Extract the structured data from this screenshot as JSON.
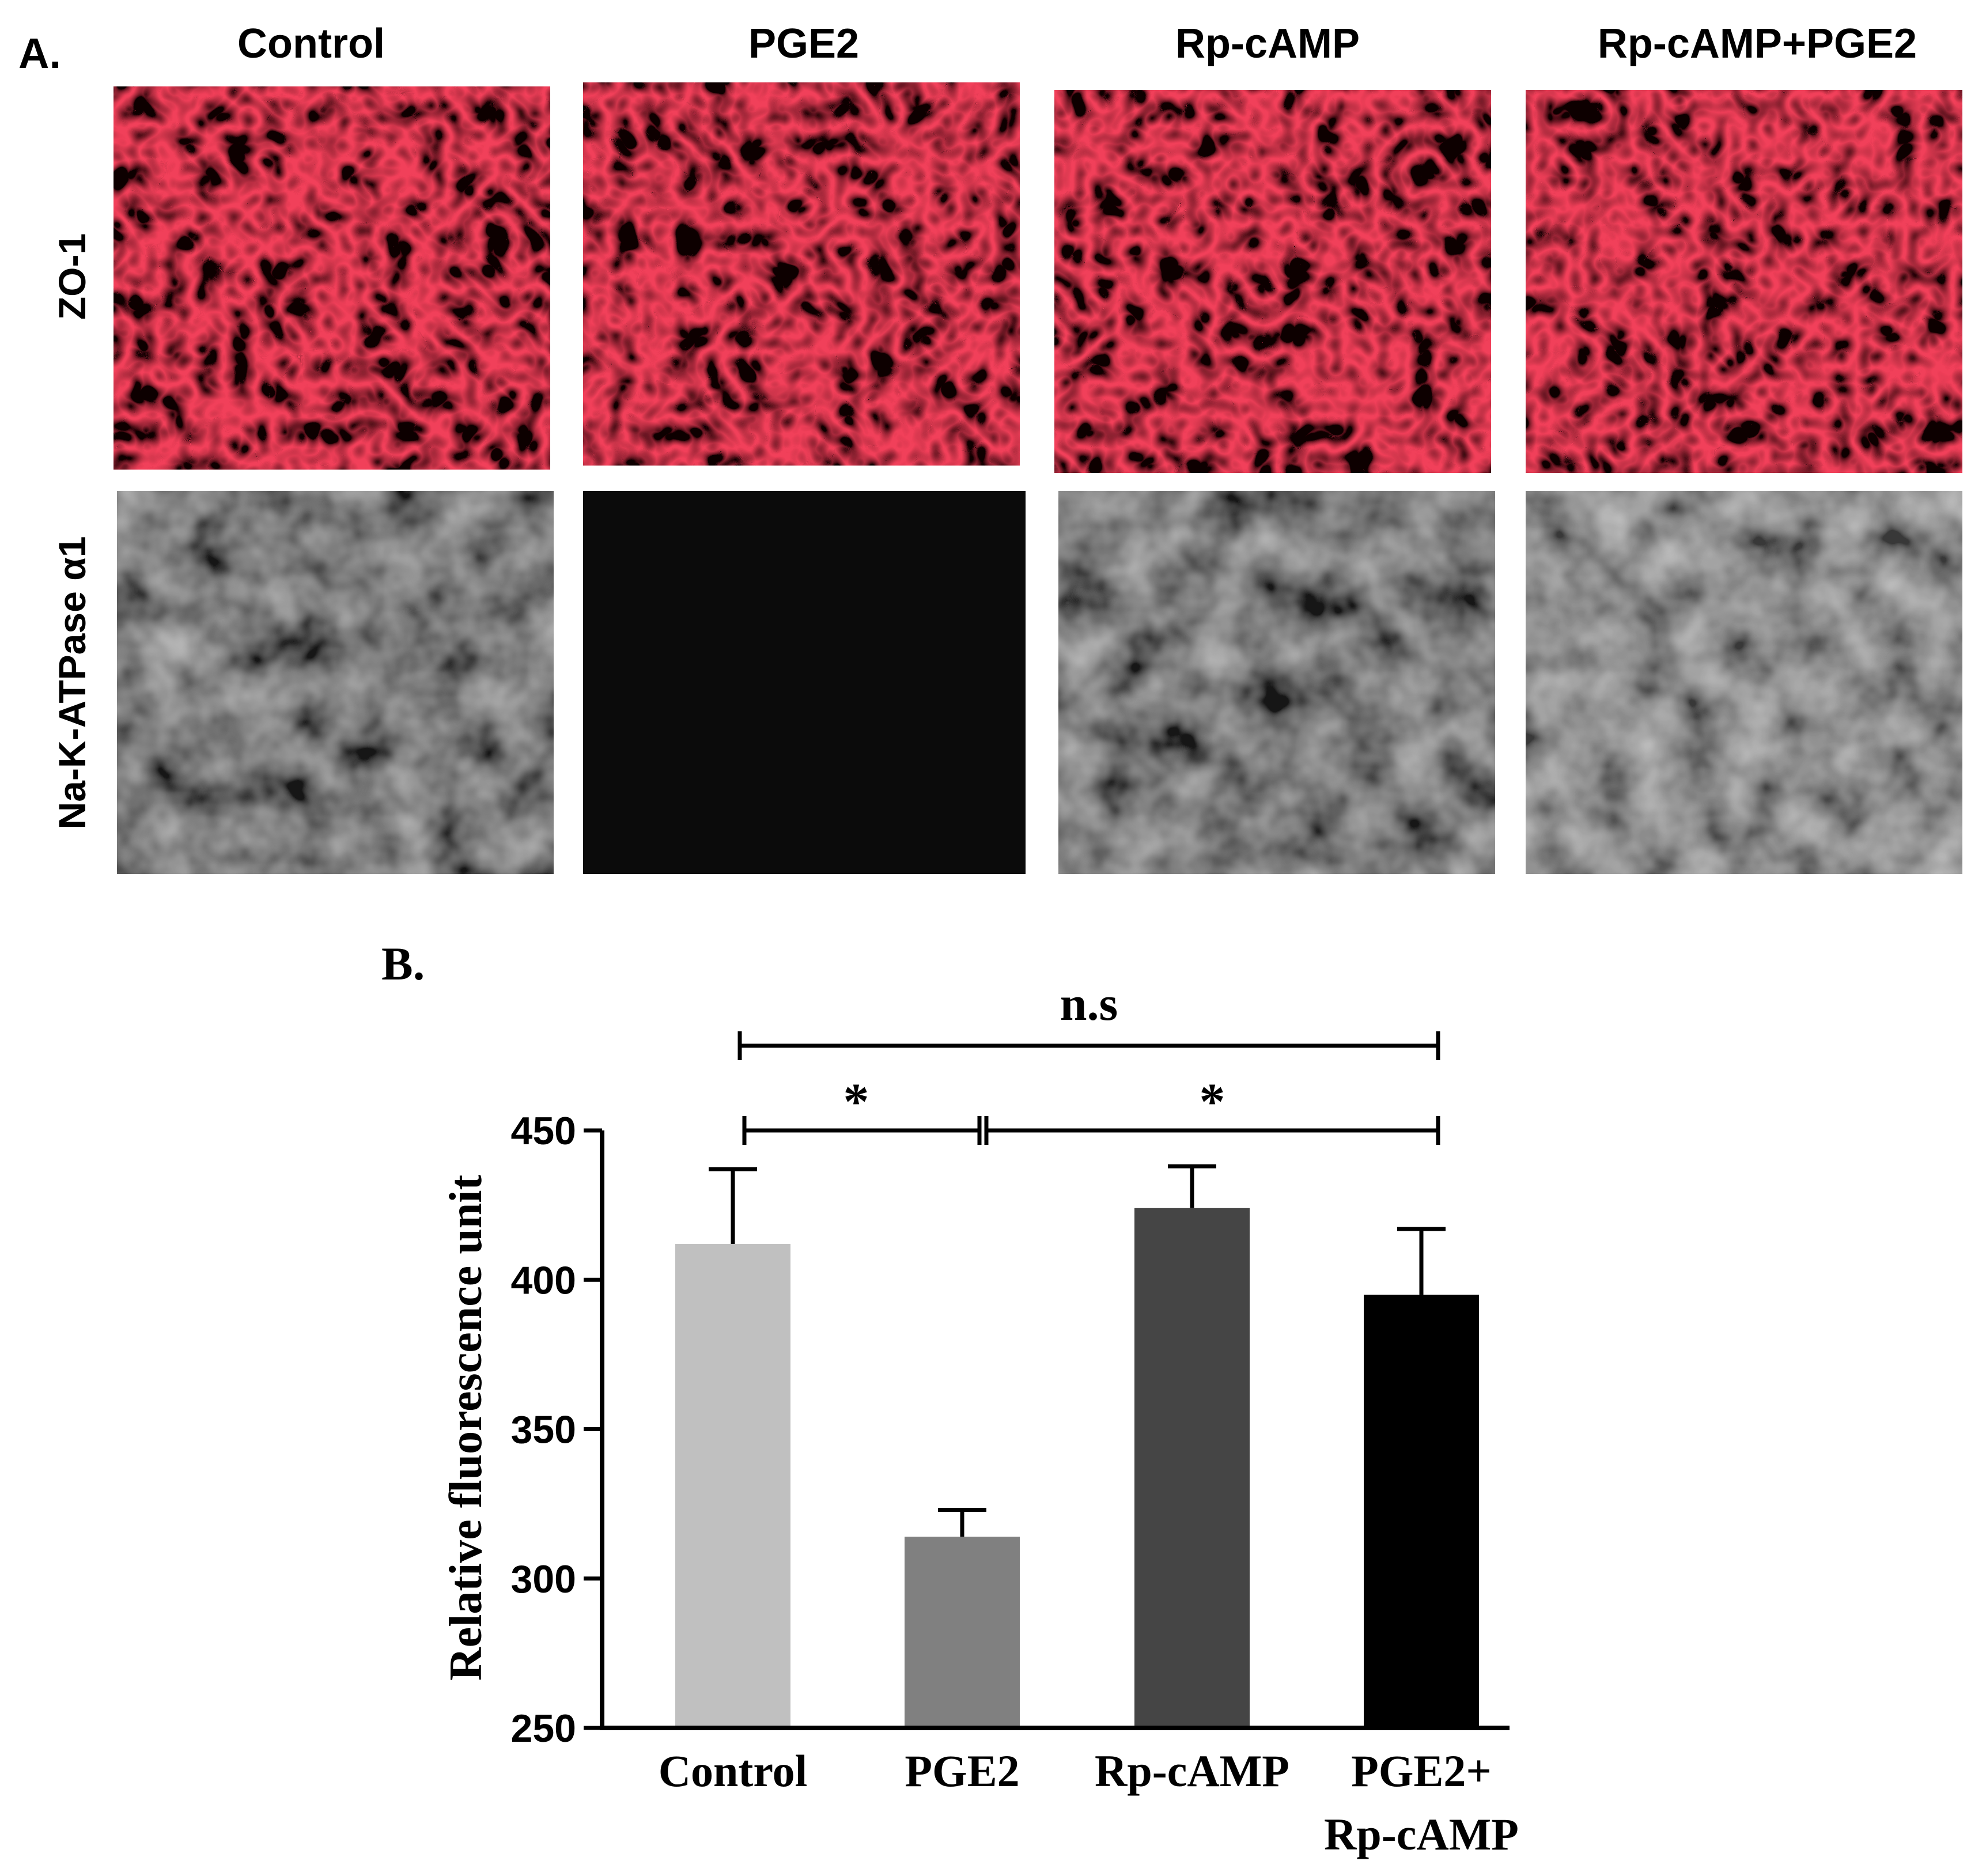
{
  "panel_a": {
    "label": "A.",
    "columns": [
      "Control",
      "PGE2",
      "Rp-cAMP",
      "Rp-cAMP+PGE2"
    ],
    "rows": [
      "ZO-1",
      "Na-K-ATPase α1"
    ],
    "colors": {
      "zo1_stain": "#e0141e",
      "atpase_stain": "#b4b4b4"
    }
  },
  "panel_b": {
    "label": "B."
  },
  "chart_data": {
    "type": "bar",
    "categories": [
      "Control",
      "PGE2",
      "Rp-cAMP",
      "PGE2+\nRp-cAMP"
    ],
    "category_lines": [
      [
        "Control"
      ],
      [
        "PGE2"
      ],
      [
        "Rp-cAMP"
      ],
      [
        "PGE2+",
        "Rp-cAMP"
      ]
    ],
    "values": [
      412,
      314,
      424,
      395
    ],
    "errors": [
      25,
      9,
      14,
      22
    ],
    "colors": [
      "#c0c0c0",
      "#808080",
      "#454545",
      "#000000"
    ],
    "ylabel": "Relative fluorescence unit",
    "ylim": [
      250,
      450
    ],
    "yticks": [
      250,
      300,
      350,
      400,
      450
    ],
    "significance": [
      {
        "from": 0,
        "to": 3,
        "label": "n.s",
        "level": 2
      },
      {
        "from": 0,
        "to": 1,
        "label": "*",
        "level": 1
      },
      {
        "from": 1,
        "to": 3,
        "label": "*",
        "level": 1
      }
    ]
  }
}
